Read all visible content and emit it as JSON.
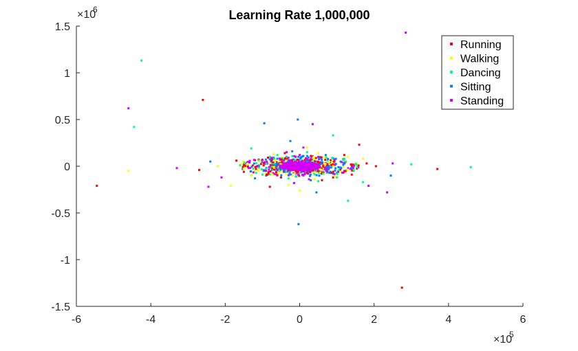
{
  "chart_data": {
    "type": "scatter",
    "title": "Learning Rate 1,000,000",
    "xlabel": "",
    "ylabel": "",
    "x_exponent": "×10",
    "x_exponent_power": "5",
    "y_exponent": "×10",
    "y_exponent_power": "6",
    "xlim": [
      -6,
      6
    ],
    "ylim": [
      -1.5,
      1.5
    ],
    "x_ticks": [
      -6,
      -4,
      -2,
      0,
      2,
      4,
      6
    ],
    "x_tick_labels": [
      "-6",
      "-4",
      "-2",
      "0",
      "2",
      "4",
      "6"
    ],
    "y_ticks": [
      -1.5,
      -1,
      -0.5,
      0,
      0.5,
      1,
      1.5
    ],
    "y_tick_labels": [
      "-1.5",
      "-1",
      "-0.5",
      "0",
      "0.5",
      "1",
      "1.5"
    ],
    "grid": false,
    "legend_position": "top-right",
    "series": [
      {
        "name": "Running",
        "color": "#ff0000",
        "points": [
          [
            -5.45,
            -0.21
          ],
          [
            -2.6,
            0.71
          ],
          [
            2.75,
            -1.3
          ],
          [
            3.7,
            -0.03
          ],
          [
            -2.7,
            -0.04
          ],
          [
            1.6,
            0.23
          ],
          [
            -1.5,
            -0.06
          ],
          [
            1.2,
            0.12
          ],
          [
            -0.8,
            -0.22
          ],
          [
            0.9,
            -0.12
          ],
          [
            -1.1,
            0.07
          ],
          [
            1.8,
            0.03
          ],
          [
            -0.4,
            0.14
          ],
          [
            0.6,
            -0.15
          ],
          [
            -1.7,
            0.06
          ],
          [
            1.4,
            -0.09
          ],
          [
            -0.5,
            -0.12
          ],
          [
            0.3,
            0.11
          ],
          [
            2.05,
            0.0
          ],
          [
            -1.3,
            -0.1
          ]
        ]
      },
      {
        "name": "Walking",
        "color": "#ffff00",
        "points": [
          [
            -4.6,
            -0.05
          ],
          [
            -2.2,
            0.0
          ],
          [
            -1.85,
            -0.21
          ],
          [
            -1.5,
            0.05
          ],
          [
            1.3,
            0.1
          ],
          [
            -1.1,
            -0.05
          ],
          [
            0.95,
            -0.11
          ],
          [
            -0.7,
            0.13
          ],
          [
            0.5,
            0.14
          ],
          [
            -0.3,
            -0.2
          ],
          [
            0.2,
            0.2
          ],
          [
            1.7,
            0.08
          ],
          [
            -0.9,
            0.06
          ],
          [
            0.0,
            -0.26
          ],
          [
            0.7,
            0.1
          ],
          [
            -1.3,
            -0.1
          ],
          [
            1.1,
            -0.06
          ],
          [
            -0.5,
            0.09
          ],
          [
            0.4,
            -0.14
          ],
          [
            1.5,
            0.02
          ]
        ]
      },
      {
        "name": "Dancing",
        "color": "#00ff80",
        "points": [
          [
            -4.25,
            1.13
          ],
          [
            -4.45,
            0.42
          ],
          [
            4.6,
            -0.01
          ],
          [
            3.0,
            0.02
          ],
          [
            1.3,
            -0.37
          ],
          [
            0.9,
            0.33
          ],
          [
            -1.3,
            0.19
          ],
          [
            1.7,
            -0.17
          ],
          [
            -0.6,
            0.12
          ],
          [
            0.5,
            -0.16
          ],
          [
            1.2,
            0.08
          ],
          [
            -1.0,
            -0.09
          ],
          [
            0.2,
            0.15
          ],
          [
            -0.3,
            -0.13
          ],
          [
            1.45,
            -0.05
          ],
          [
            -1.6,
            0.01
          ],
          [
            0.75,
            0.06
          ],
          [
            -0.8,
            0.1
          ],
          [
            1.0,
            -0.12
          ],
          [
            -0.2,
            0.07
          ]
        ]
      },
      {
        "name": "Sitting",
        "color": "#0080ff",
        "points": [
          [
            -0.05,
            0.5
          ],
          [
            -0.95,
            0.46
          ],
          [
            -0.03,
            -0.62
          ],
          [
            0.45,
            -0.28
          ],
          [
            -0.25,
            0.27
          ],
          [
            2.45,
            -0.1
          ],
          [
            -2.4,
            0.05
          ],
          [
            -1.2,
            -0.13
          ],
          [
            0.7,
            0.12
          ],
          [
            -0.6,
            0.08
          ],
          [
            0.3,
            -0.15
          ],
          [
            1.4,
            -0.03
          ],
          [
            -0.4,
            -0.06
          ],
          [
            0.1,
            0.11
          ],
          [
            -1.4,
            0.02
          ],
          [
            0.9,
            -0.08
          ],
          [
            -0.2,
            0.16
          ],
          [
            0.6,
            0.03
          ],
          [
            -0.9,
            -0.1
          ],
          [
            1.1,
            0.05
          ],
          [
            -0.1,
            -0.11
          ],
          [
            0.35,
            0.07
          ]
        ]
      },
      {
        "name": "Standing",
        "color": "#d400ff",
        "points": [
          [
            2.85,
            1.43
          ],
          [
            -4.6,
            0.62
          ],
          [
            0.35,
            0.45
          ],
          [
            2.35,
            -0.28
          ],
          [
            -2.45,
            -0.22
          ],
          [
            -3.3,
            -0.02
          ],
          [
            1.85,
            -0.21
          ],
          [
            2.5,
            0.03
          ],
          [
            -2.1,
            -0.12
          ],
          [
            0.1,
            0.2
          ],
          [
            -0.15,
            -0.18
          ],
          [
            0.25,
            -0.14
          ],
          [
            -0.35,
            0.15
          ],
          [
            0.5,
            0.1
          ],
          [
            -0.6,
            -0.09
          ],
          [
            0.8,
            0.04
          ],
          [
            -1.0,
            0.07
          ],
          [
            1.2,
            -0.05
          ],
          [
            -0.05,
            0.05
          ],
          [
            0.05,
            -0.06
          ],
          [
            -0.2,
            0.02
          ],
          [
            0.15,
            -0.02
          ],
          [
            -0.1,
            -0.08
          ],
          [
            0.3,
            0.08
          ],
          [
            -0.45,
            -0.03
          ],
          [
            0.6,
            -0.07
          ],
          [
            -0.75,
            0.04
          ],
          [
            0.0,
            0.12
          ],
          [
            0.1,
            -0.1
          ],
          [
            -0.3,
            0.09
          ]
        ]
      }
    ]
  }
}
